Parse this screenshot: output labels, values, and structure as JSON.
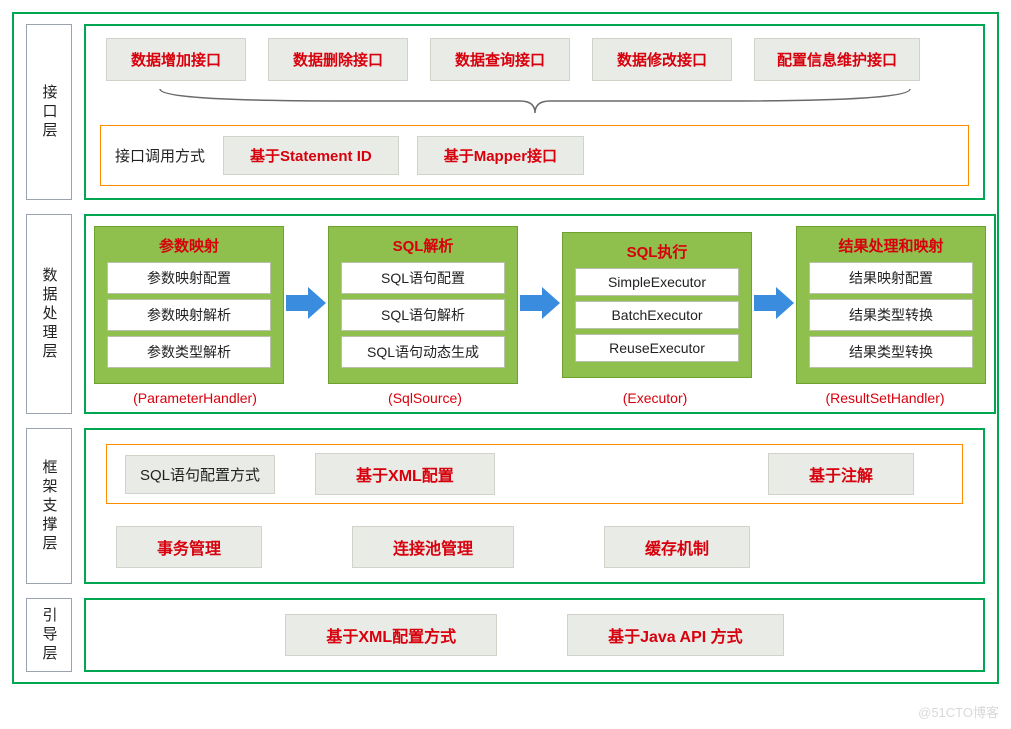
{
  "colors": {
    "outer_border": "#00a650",
    "box_bg": "#e9ebe6",
    "box_border": "#cfd3c9",
    "accent": "#d8000c",
    "orange": "#ff8c00",
    "green_card": "#8fbf4d",
    "arrow": "#3a8dde"
  },
  "layers": {
    "interface": {
      "label": "接口层",
      "top_boxes": [
        "数据增加接口",
        "数据删除接口",
        "数据查询接口",
        "数据修改接口",
        "配置信息维护接口"
      ],
      "call_label": "接口调用方式",
      "call_modes": [
        "基于Statement ID",
        "基于Mapper接口"
      ]
    },
    "data_processing": {
      "label": "数据处理层",
      "cards": [
        {
          "title": "参数映射",
          "items": [
            "参数映射配置",
            "参数映射解析",
            "参数类型解析"
          ],
          "caption": "(ParameterHandler)"
        },
        {
          "title": "SQL解析",
          "items": [
            "SQL语句配置",
            "SQL语句解析",
            "SQL语句动态生成"
          ],
          "caption": "(SqlSource)"
        },
        {
          "title": "SQL执行",
          "items": [
            "SimpleExecutor",
            "BatchExecutor",
            "ReuseExecutor"
          ],
          "caption": "(Executor)"
        },
        {
          "title": "结果处理和映射",
          "items": [
            "结果映射配置",
            "结果类型转换",
            "结果类型转换"
          ],
          "caption": "(ResultSetHandler)"
        }
      ]
    },
    "framework_support": {
      "label": "框架支撑层",
      "sql_conf_label": "SQL语句配置方式",
      "sql_conf_modes": [
        "基于XML配置",
        "基于注解"
      ],
      "bottom_boxes": [
        "事务管理",
        "连接池管理",
        "缓存机制"
      ]
    },
    "bootstrap": {
      "label": "引导层",
      "modes": [
        "基于XML配置方式",
        "基于Java API 方式"
      ]
    }
  },
  "watermark": "@51CTO博客"
}
